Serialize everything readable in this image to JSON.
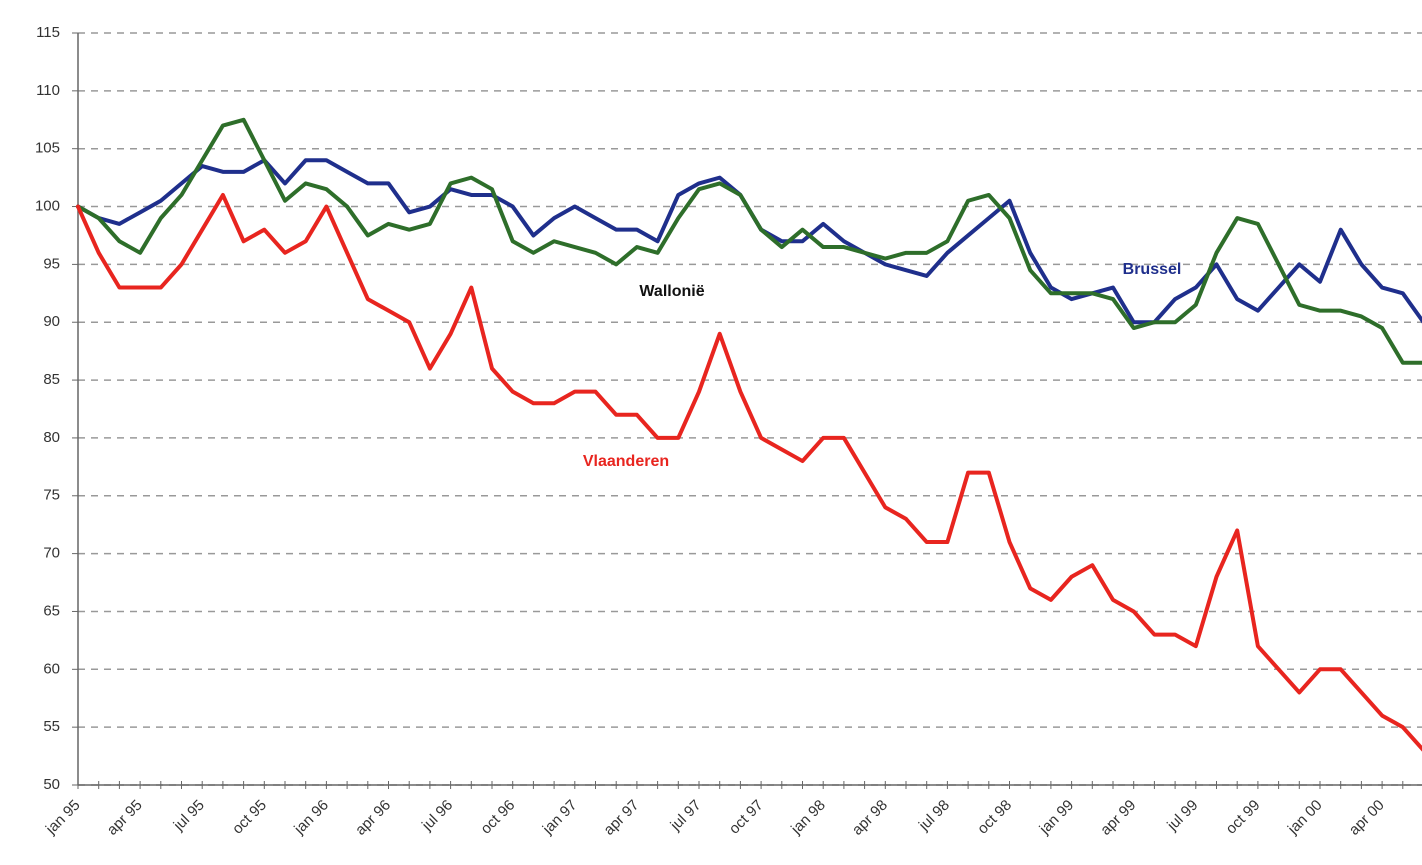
{
  "chart_data": {
    "type": "line",
    "categories": [
      "jan 95",
      null,
      null,
      "apr 95",
      null,
      null,
      "jul 95",
      null,
      null,
      "oct 95",
      null,
      null,
      "jan 96",
      null,
      null,
      "apr 96",
      null,
      null,
      "jul 96",
      null,
      null,
      "oct 96",
      null,
      null,
      "jan 97",
      null,
      null,
      "apr 97",
      null,
      null,
      "jul 97",
      null,
      null,
      "oct 97",
      null,
      null,
      "jan 98",
      null,
      null,
      "apr 98",
      null,
      null,
      "jul 98",
      null,
      null,
      "oct 98",
      null,
      null,
      "jan 99",
      null,
      null,
      "apr 99",
      null,
      null,
      "jul 99",
      null,
      null,
      "oct 99",
      null,
      null,
      "jan 00",
      null,
      null,
      "apr 00",
      null,
      null
    ],
    "series": [
      {
        "name": "Brussel",
        "color": "#1f2f8c",
        "values": [
          100,
          99,
          98.5,
          99.5,
          100.5,
          102,
          103.5,
          103,
          103,
          104,
          102,
          104,
          104,
          103,
          102,
          102,
          99.5,
          100,
          101.5,
          101,
          101,
          100,
          97.5,
          99,
          100,
          99,
          98,
          98,
          97,
          101,
          102,
          102.5,
          101,
          98,
          97,
          97,
          98.5,
          97,
          96,
          95,
          94.5,
          94,
          96,
          97.5,
          99,
          100.5,
          96,
          93,
          92,
          92.5,
          93,
          90,
          90,
          92,
          93,
          95,
          92,
          91,
          93,
          95,
          93.5,
          98,
          95,
          93,
          92.5,
          90
        ]
      },
      {
        "name": "Wallonië",
        "color": "#2e6e2a",
        "values": [
          100,
          99,
          97,
          96,
          99,
          101,
          104,
          107,
          107.5,
          104,
          100.5,
          102,
          101.5,
          100,
          97.5,
          98.5,
          98,
          98.5,
          102,
          102.5,
          101.5,
          97,
          96,
          97,
          96.5,
          96,
          95,
          96.5,
          96,
          99,
          101.5,
          102,
          101,
          98,
          96.5,
          98,
          96.5,
          96.5,
          96,
          95.5,
          96,
          96,
          97,
          100.5,
          101,
          99,
          94.5,
          92.5,
          92.5,
          92.5,
          92,
          89.5,
          90,
          90,
          91.5,
          96,
          99,
          98.5,
          95,
          91.5,
          91,
          91,
          90.5,
          89.5,
          86.5,
          86.5
        ]
      },
      {
        "name": "Vlaanderen",
        "color": "#e8251f",
        "values": [
          100,
          96,
          93,
          93,
          93,
          95,
          98,
          101,
          97,
          98,
          96,
          97,
          100,
          96,
          92,
          91,
          90,
          86,
          89,
          93,
          86,
          84,
          83,
          83,
          84,
          84,
          82,
          82,
          80,
          80,
          84,
          89,
          84,
          80,
          79,
          78,
          80,
          80,
          77,
          74,
          73,
          71,
          71,
          77,
          77,
          71,
          67,
          66,
          68,
          69,
          66,
          65,
          63,
          63,
          62,
          68,
          72,
          62,
          60,
          58,
          60,
          60,
          58,
          56,
          55,
          53
        ]
      }
    ],
    "ylim": [
      50,
      115
    ],
    "yticks": [
      50,
      55,
      60,
      65,
      70,
      75,
      80,
      85,
      90,
      95,
      100,
      105,
      110,
      115
    ],
    "grid": true
  }
}
